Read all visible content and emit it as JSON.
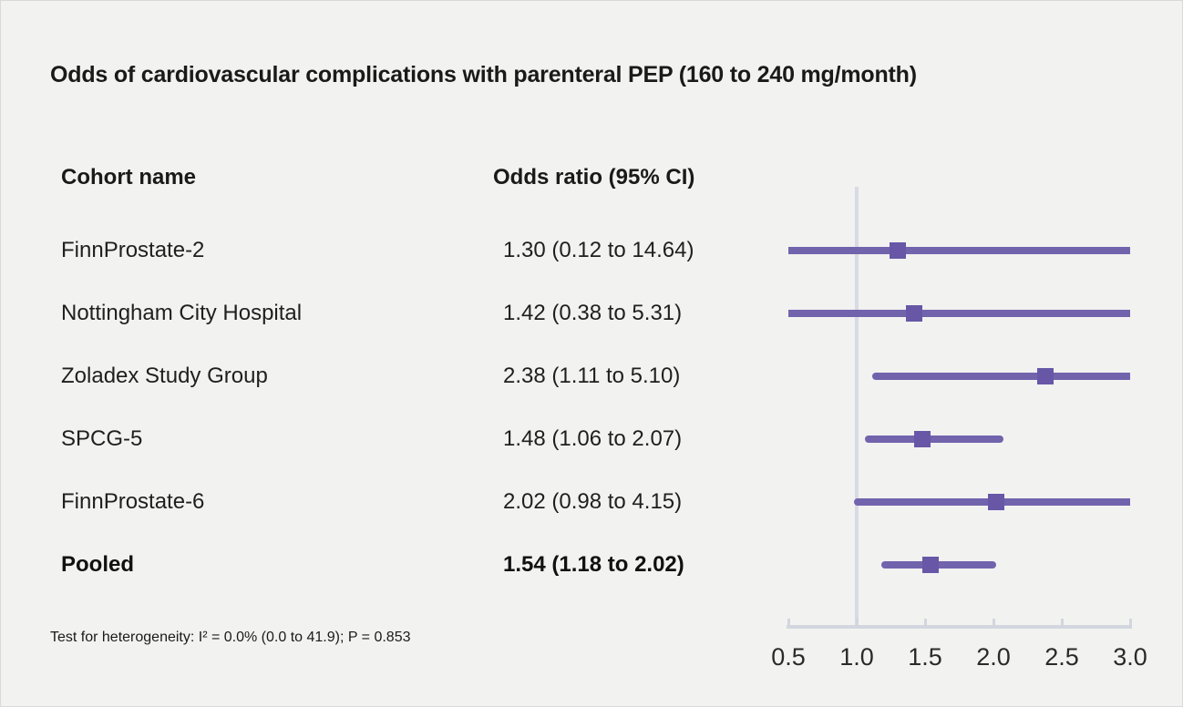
{
  "title": "Odds of cardiovascular complications with parenteral PEP (160 to 240 mg/month)",
  "columns": {
    "cohort": "Cohort name",
    "odds_ratio": "Odds ratio (95% CI)"
  },
  "footnote": "Test for heterogeneity: I² = 0.0% (0.0 to 41.9); P = 0.853",
  "colors": {
    "background": "#f2f2f1",
    "text": "#1a1a1a",
    "ci_line": "#7263ad",
    "marker": "#6757a6",
    "axis": "#d2d6de",
    "reference_line": "#d8dbe3"
  },
  "chart_data": {
    "type": "forest",
    "title": "Odds of cardiovascular complications with parenteral PEP (160 to 240 mg/month)",
    "xlabel": "",
    "ylabel": "",
    "xlim": [
      0.5,
      3.0
    ],
    "xticks": [
      "0.5",
      "1.0",
      "1.5",
      "2.0",
      "2.5",
      "3.0"
    ],
    "xtick_values": [
      0.5,
      1.0,
      1.5,
      2.0,
      2.5,
      3.0
    ],
    "reference_value": 1.0,
    "grid": false,
    "legend": "none",
    "rows": [
      {
        "label": "FinnProstate-2",
        "or_text": "1.30 (0.12 to 14.64)",
        "estimate": 1.3,
        "ci_low": 0.12,
        "ci_high": 14.64,
        "bold": false
      },
      {
        "label": "Nottingham City Hospital",
        "or_text": "1.42 (0.38 to 5.31)",
        "estimate": 1.42,
        "ci_low": 0.38,
        "ci_high": 5.31,
        "bold": false
      },
      {
        "label": "Zoladex Study Group",
        "or_text": "2.38 (1.11 to 5.10)",
        "estimate": 2.38,
        "ci_low": 1.11,
        "ci_high": 5.1,
        "bold": false
      },
      {
        "label": "SPCG-5",
        "or_text": "1.48 (1.06 to 2.07)",
        "estimate": 1.48,
        "ci_low": 1.06,
        "ci_high": 2.07,
        "bold": false
      },
      {
        "label": "FinnProstate-6",
        "or_text": "2.02 (0.98 to 4.15)",
        "estimate": 2.02,
        "ci_low": 0.98,
        "ci_high": 4.15,
        "bold": false
      },
      {
        "label": "Pooled",
        "or_text": "1.54 (1.18 to 2.02)",
        "estimate": 1.54,
        "ci_low": 1.18,
        "ci_high": 2.02,
        "bold": true
      }
    ]
  }
}
